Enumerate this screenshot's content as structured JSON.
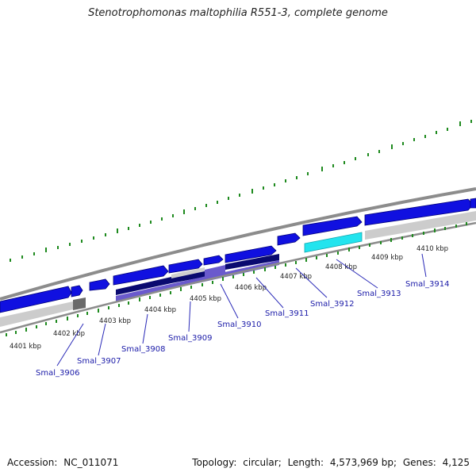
{
  "title": "Stenotrophomonas maltophilia R551-3, complete genome",
  "footer": {
    "accession_label": "Accession:",
    "accession": "NC_011071",
    "topology_label": "Topology:",
    "topology": "circular",
    "length_label": "Length:",
    "length": "4,573,969 bp",
    "genes_label": "Genes:",
    "genes": "4,125"
  },
  "ticks": [
    "4401 kbp",
    "4402 kbp",
    "4403 kbp",
    "4404 kbp",
    "4405 kbp",
    "4406 kbp",
    "4407 kbp",
    "4408 kbp",
    "4409 kbp",
    "4410 kbp"
  ],
  "genes": [
    "Smal_3906",
    "Smal_3907",
    "Smal_3908",
    "Smal_3909",
    "Smal_3910",
    "Smal_3911",
    "Smal_3912",
    "Smal_3913",
    "Smal_3914"
  ],
  "colors": {
    "cds": "#1010e0",
    "cds_dark": "#0a0a70",
    "cds_light": "#6a5acd",
    "rna_cyan": "#22e4ee",
    "backbone_grey": "#999999",
    "tick_green": "#1e8a1e",
    "label_blue": "#1a1aa8"
  }
}
